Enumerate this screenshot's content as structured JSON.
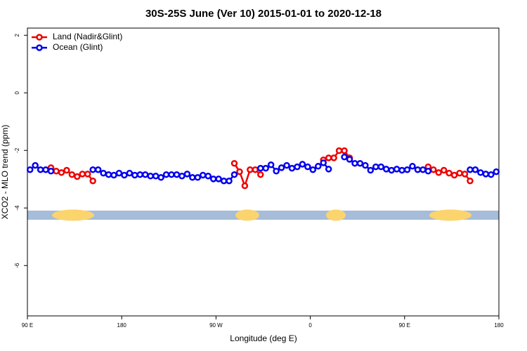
{
  "chart_data": {
    "type": "line",
    "title": "30S-25S June (Ver 10)   2015-01-01 to 2020-12-18",
    "xlabel": "Longitude (deg E)",
    "ylabel": "XCO2 - MLO trend (ppm)",
    "x": [
      92.5,
      97.5,
      102.5,
      107.5,
      112.5,
      117.5,
      122.5,
      127.5,
      132.5,
      137.5,
      142.5,
      147.5,
      152.5,
      157.5,
      162.5,
      167.5,
      172.5,
      177.5,
      182.5,
      187.5,
      192.5,
      197.5,
      202.5,
      207.5,
      212.5,
      217.5,
      222.5,
      227.5,
      232.5,
      237.5,
      242.5,
      247.5,
      252.5,
      257.5,
      262.5,
      267.5,
      272.5,
      277.5,
      282.5,
      287.5,
      292.5,
      297.5,
      302.5,
      307.5,
      312.5,
      317.5,
      322.5,
      327.5,
      332.5,
      337.5,
      342.5,
      347.5,
      352.5,
      357.5,
      362.5,
      367.5,
      372.5,
      377.5,
      382.5,
      387.5,
      392.5,
      397.5,
      402.5,
      407.5,
      412.5,
      417.5,
      422.5,
      427.5,
      432.5,
      437.5,
      442.5,
      447.5,
      452.5,
      457.5,
      462.5,
      467.5,
      472.5,
      477.5,
      482.5,
      487.5,
      492.5,
      497.5,
      502.5,
      507.5,
      512.5,
      517.5,
      522.5,
      527.5,
      532.5,
      537.5
    ],
    "series": [
      {
        "name": "Land (Nadir&Glint)",
        "color": "#ee0000",
        "values": [
          null,
          null,
          null,
          null,
          -2.6,
          -2.72,
          -2.77,
          -2.69,
          -2.84,
          -2.91,
          -2.82,
          -2.82,
          -3.06,
          null,
          null,
          null,
          null,
          null,
          null,
          null,
          null,
          null,
          null,
          null,
          null,
          null,
          null,
          null,
          null,
          null,
          null,
          null,
          null,
          null,
          null,
          null,
          null,
          null,
          null,
          -2.45,
          -2.74,
          -3.23,
          -2.67,
          -2.67,
          -2.84,
          null,
          null,
          null,
          null,
          null,
          null,
          null,
          null,
          null,
          null,
          null,
          -2.33,
          -2.26,
          -2.26,
          -2.01,
          -2.01,
          -2.26,
          null,
          null,
          null,
          null,
          null,
          null,
          null,
          null,
          null,
          null,
          null,
          null,
          null,
          null,
          -2.57,
          -2.67,
          -2.77,
          -2.69,
          -2.79,
          -2.86,
          -2.79,
          -2.82,
          -3.06,
          null,
          null,
          null,
          null,
          null
        ]
      },
      {
        "name": "Ocean (Glint)",
        "color": "#0000ee",
        "values": [
          -2.67,
          -2.52,
          -2.67,
          -2.67,
          -2.72,
          null,
          null,
          null,
          null,
          null,
          null,
          null,
          -2.67,
          -2.67,
          -2.79,
          -2.84,
          -2.86,
          -2.79,
          -2.86,
          -2.79,
          -2.86,
          -2.84,
          -2.84,
          -2.89,
          -2.89,
          -2.94,
          -2.84,
          -2.84,
          -2.84,
          -2.89,
          -2.82,
          -2.94,
          -2.94,
          -2.86,
          -2.89,
          -2.99,
          -2.99,
          -3.06,
          -3.06,
          -2.84,
          null,
          null,
          null,
          null,
          -2.62,
          -2.62,
          -2.5,
          -2.72,
          -2.6,
          -2.52,
          -2.62,
          -2.57,
          -2.48,
          -2.57,
          -2.67,
          -2.55,
          -2.43,
          -2.65,
          null,
          null,
          -2.23,
          -2.31,
          -2.45,
          -2.45,
          -2.52,
          -2.69,
          -2.57,
          -2.57,
          -2.65,
          -2.69,
          -2.65,
          -2.69,
          -2.67,
          -2.55,
          -2.67,
          -2.67,
          -2.72,
          null,
          null,
          null,
          null,
          null,
          null,
          null,
          -2.67,
          -2.67,
          -2.77,
          -2.82,
          -2.84,
          -2.74
        ]
      }
    ],
    "xlim": [
      90,
      540
    ],
    "xticks": [
      {
        "value": 90,
        "label": "90 E"
      },
      180,
      {
        "value": 270,
        "label": "90 W"
      },
      {
        "value": 360,
        "label": "0"
      },
      {
        "value": 450,
        "label": "90 E"
      },
      {
        "value": 540,
        "label": "180"
      }
    ],
    "ylim": [
      -7.75,
      2.25
    ],
    "yticks": [
      -6,
      -4,
      -2,
      0,
      2
    ],
    "legend": "upper left"
  }
}
